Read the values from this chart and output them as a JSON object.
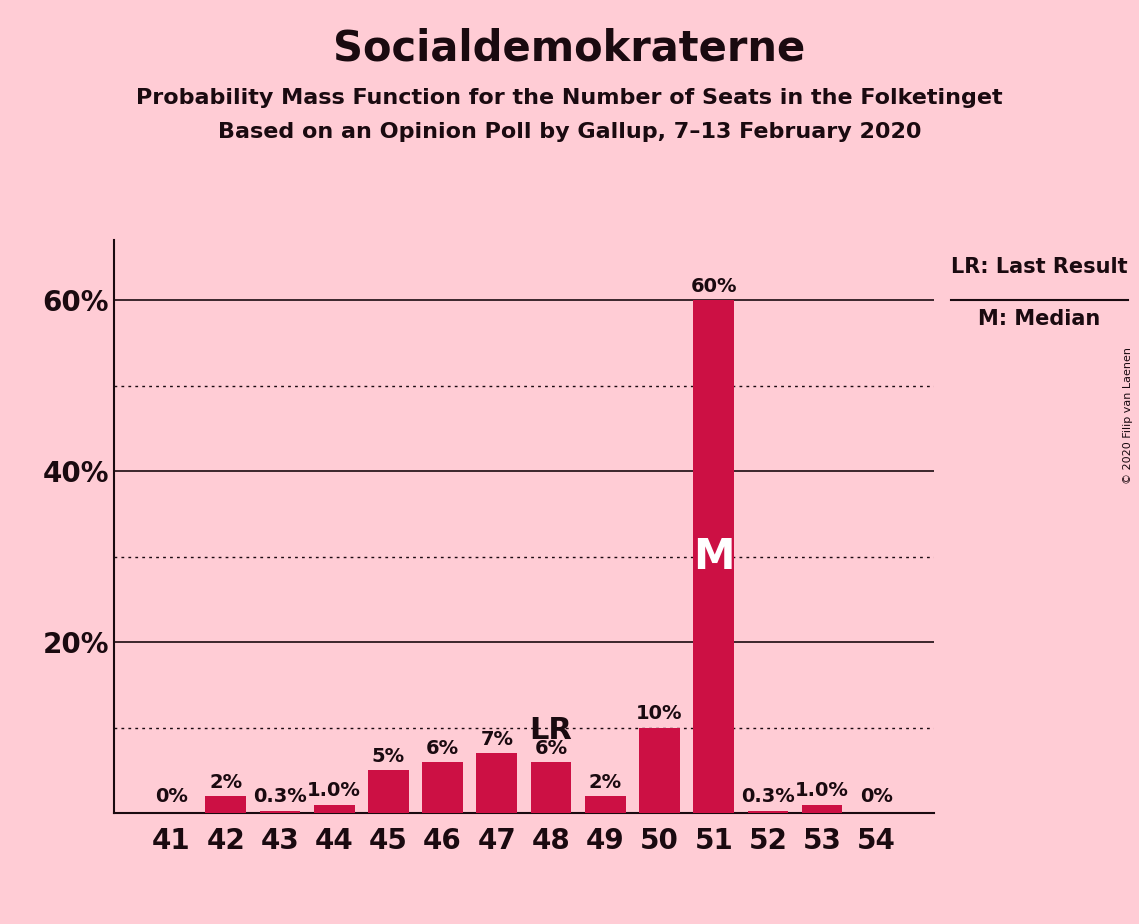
{
  "title": "Socialdemokraterne",
  "subtitle1": "Probability Mass Function for the Number of Seats in the Folketinget",
  "subtitle2": "Based on an Opinion Poll by Gallup, 7–13 February 2020",
  "copyright": "© 2020 Filip van Laenen",
  "categories": [
    41,
    42,
    43,
    44,
    45,
    46,
    47,
    48,
    49,
    50,
    51,
    52,
    53,
    54
  ],
  "values": [
    0.0,
    2.0,
    0.3,
    1.0,
    5.0,
    6.0,
    7.0,
    6.0,
    2.0,
    10.0,
    60.0,
    0.3,
    1.0,
    0.0
  ],
  "labels": [
    "0%",
    "2%",
    "0.3%",
    "1.0%",
    "5%",
    "6%",
    "7%",
    "6%",
    "2%",
    "10%",
    "60%",
    "0.3%",
    "1.0%",
    "0%"
  ],
  "bar_color": "#CC1044",
  "background_color": "#FFCCD5",
  "text_color": "#1A0A10",
  "lr_seat": 48,
  "median_seat": 51,
  "ylim": [
    0,
    67
  ],
  "solid_gridlines": [
    20,
    40,
    60
  ],
  "dotted_gridlines": [
    10,
    30,
    50
  ],
  "yticks": [
    20,
    40,
    60
  ],
  "ytick_labels": [
    "20%",
    "40%",
    "60%"
  ],
  "legend_lr": "LR: Last Result",
  "legend_m": "M: Median",
  "title_fontsize": 30,
  "subtitle_fontsize": 16,
  "bar_label_fontsize": 14,
  "axis_label_fontsize": 20,
  "lr_label_fontsize": 22,
  "m_label_fontsize": 30
}
